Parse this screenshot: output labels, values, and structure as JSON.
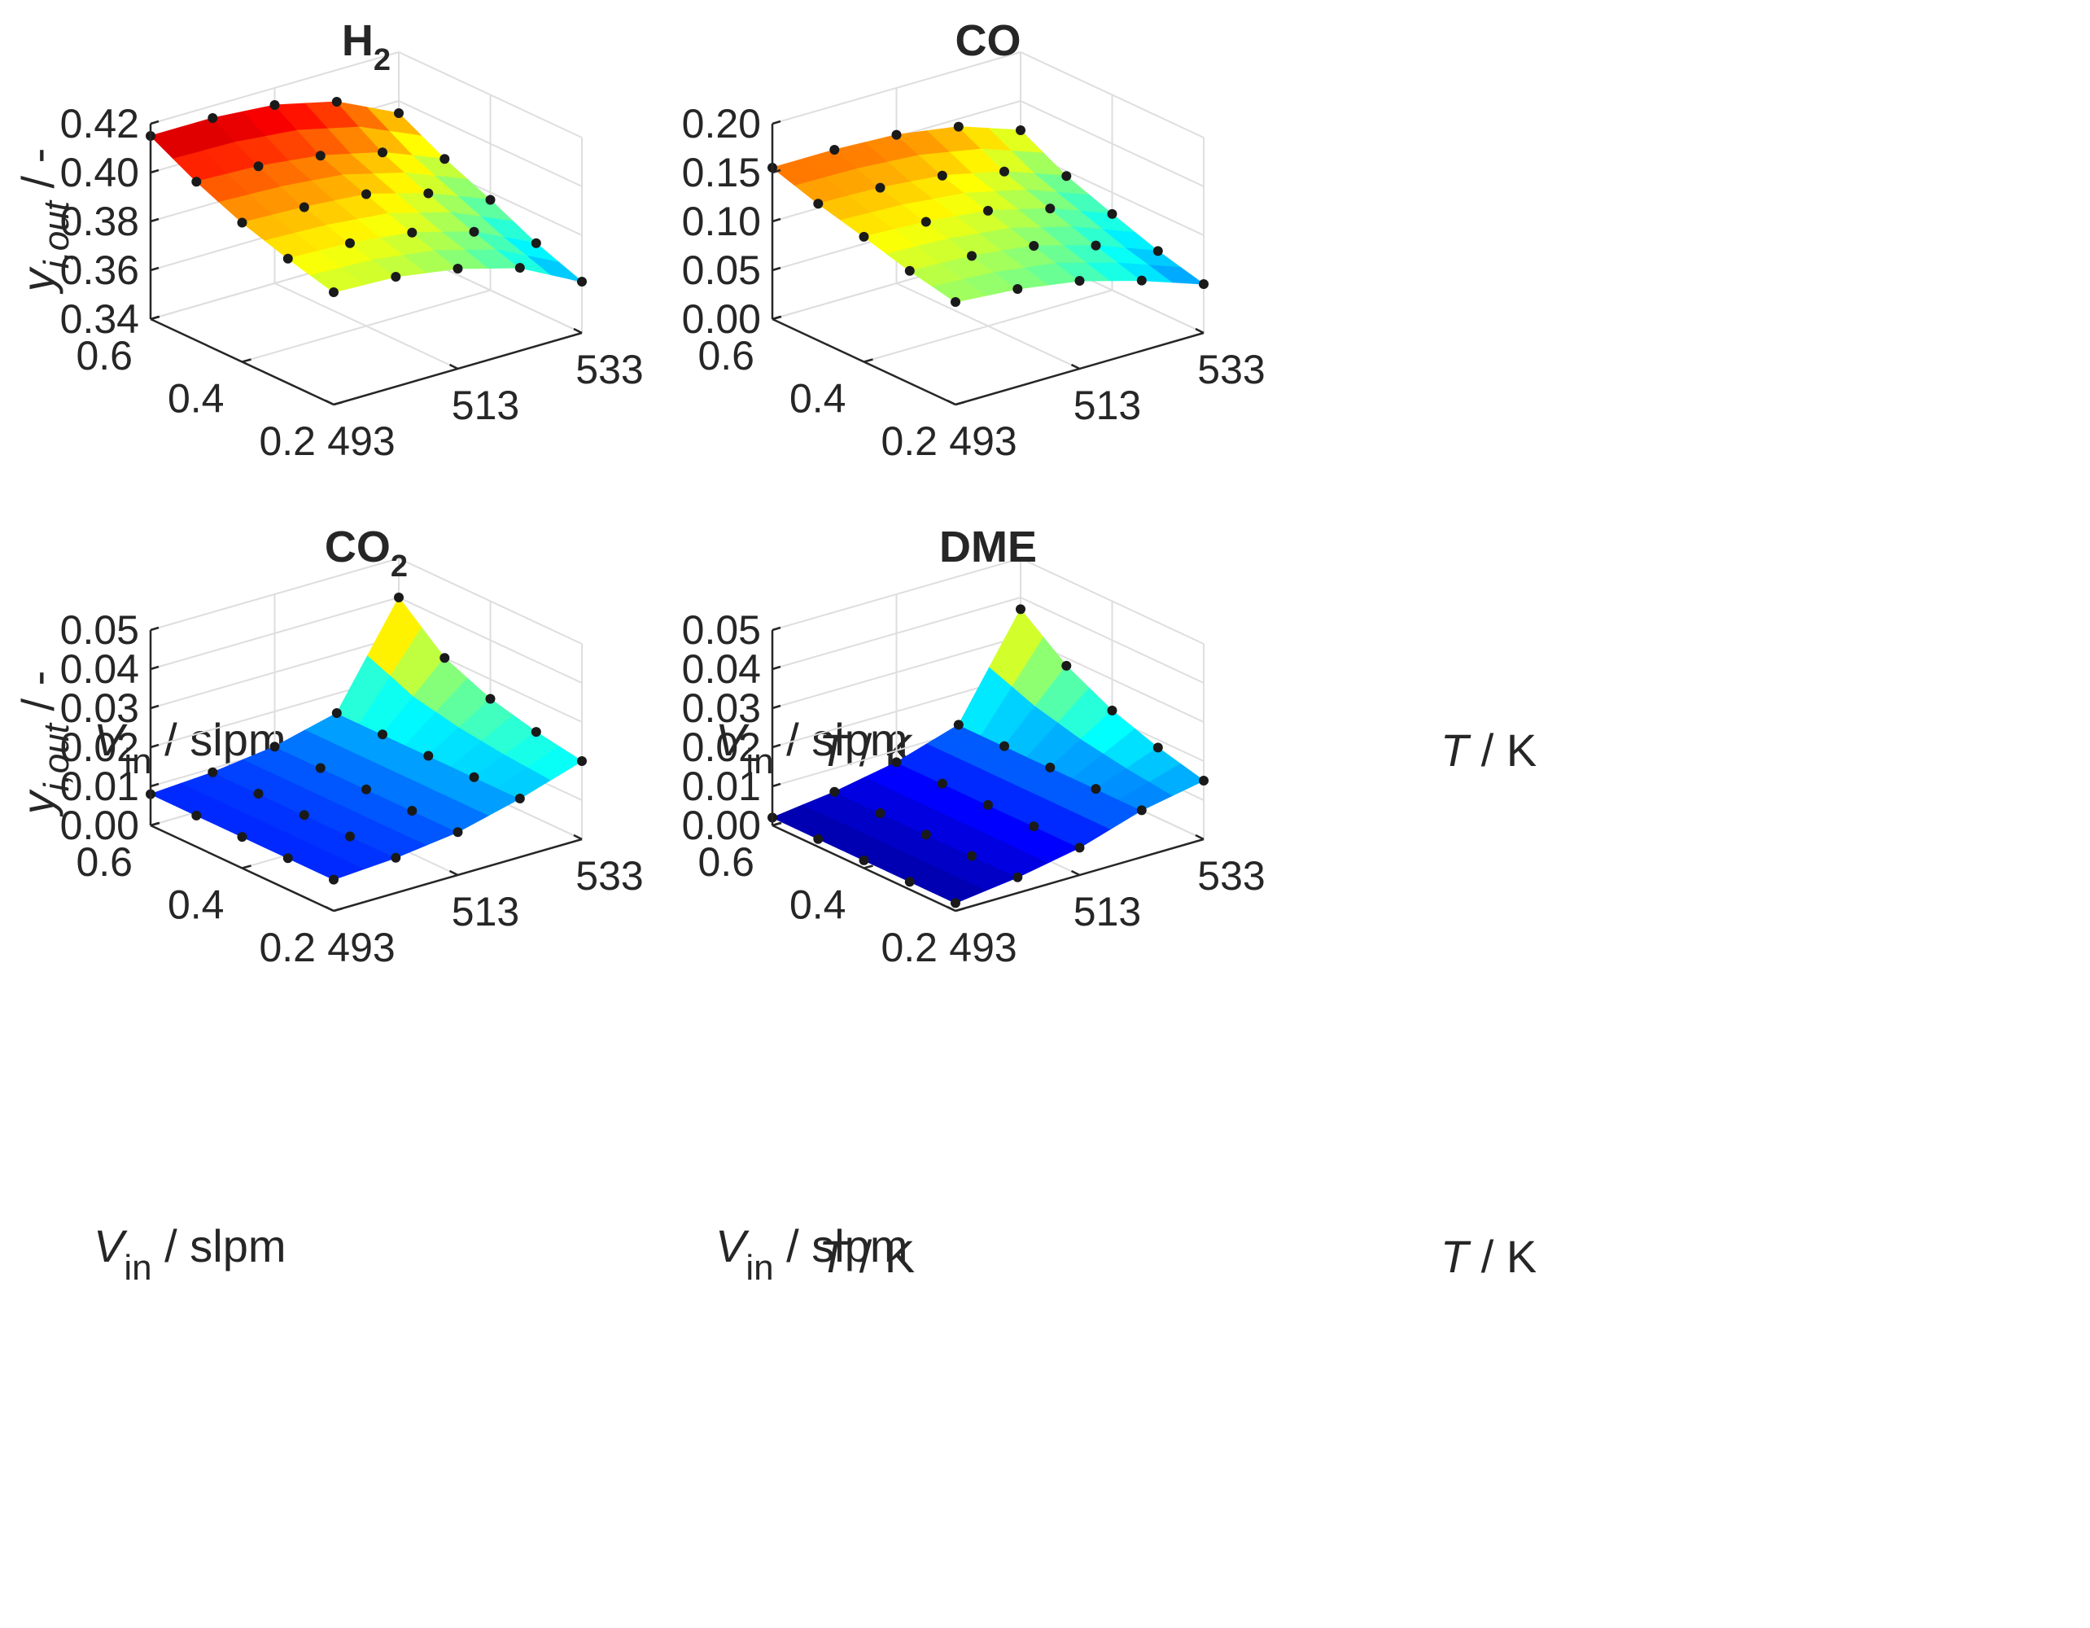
{
  "chart_data": [
    {
      "type": "surface",
      "title": "H",
      "title_sub": "2",
      "zlabel": "y",
      "zlabel_sub": "i,out",
      "zlabel_unit": " / -",
      "xlabel_italic": "V",
      "xlabel_sub": "in",
      "xlabel_unit": " / slpm",
      "ylabel_italic": "T",
      "ylabel_unit": " / K",
      "zlim": [
        0.34,
        0.42
      ],
      "zticks": [
        "0.34",
        "0.36",
        "0.38",
        "0.40",
        "0.42"
      ],
      "zticks_values": [
        0.34,
        0.36,
        0.38,
        0.4,
        0.42
      ],
      "flow_ticks": [
        "0.2",
        "0.4",
        "0.6"
      ],
      "flow_ticks_values": [
        0.2,
        0.4,
        0.6
      ],
      "temp_ticks": [
        "493",
        "513",
        "533"
      ],
      "temp_ticks_values": [
        493,
        513,
        533
      ],
      "grid": true,
      "flow_values": [
        0.6,
        0.5,
        0.4,
        0.3,
        0.2
      ],
      "temperature_values": [
        493,
        503,
        513,
        523,
        533
      ],
      "yi_out": [
        [
          0.415,
          0.415,
          0.413,
          0.407,
          0.395
        ],
        [
          0.405,
          0.404,
          0.401,
          0.395,
          0.385
        ],
        [
          0.397,
          0.396,
          0.394,
          0.387,
          0.377
        ],
        [
          0.391,
          0.39,
          0.387,
          0.38,
          0.368
        ],
        [
          0.386,
          0.385,
          0.381,
          0.374,
          0.361
        ]
      ]
    },
    {
      "type": "surface",
      "title": "CO",
      "title_sub": "",
      "zlabel": "",
      "zlabel_sub": "",
      "zlabel_unit": "",
      "xlabel_italic": "V",
      "xlabel_sub": "in",
      "xlabel_unit": " / slpm",
      "ylabel_italic": "T",
      "ylabel_unit": " / K",
      "zlim": [
        0.0,
        0.2
      ],
      "zticks": [
        "0.00",
        "0.05",
        "0.10",
        "0.15",
        "0.20"
      ],
      "zticks_values": [
        0.0,
        0.05,
        0.1,
        0.15,
        0.2
      ],
      "flow_ticks": [
        "0.2",
        "0.4",
        "0.6"
      ],
      "flow_ticks_values": [
        0.2,
        0.4,
        0.6
      ],
      "temp_ticks": [
        "493",
        "513",
        "533"
      ],
      "temp_ticks_values": [
        493,
        513,
        533
      ],
      "grid": true,
      "flow_values": [
        0.6,
        0.5,
        0.4,
        0.3,
        0.2
      ],
      "temperature_values": [
        493,
        503,
        513,
        523,
        533
      ],
      "yi_out": [
        [
          0.155,
          0.155,
          0.152,
          0.142,
          0.12
        ],
        [
          0.14,
          0.138,
          0.132,
          0.118,
          0.095
        ],
        [
          0.128,
          0.125,
          0.118,
          0.102,
          0.078
        ],
        [
          0.115,
          0.112,
          0.104,
          0.086,
          0.062
        ],
        [
          0.105,
          0.1,
          0.09,
          0.072,
          0.05
        ]
      ]
    },
    {
      "type": "surface",
      "title": "CO",
      "title_sub": "2",
      "zlabel": "y",
      "zlabel_sub": "i,out",
      "zlabel_unit": " / -",
      "xlabel_italic": "V",
      "xlabel_sub": "in",
      "xlabel_unit": " / slpm",
      "ylabel_italic": "T",
      "ylabel_unit": " / K",
      "zlim": [
        0.0,
        0.05
      ],
      "zticks": [
        "0.00",
        "0.01",
        "0.02",
        "0.03",
        "0.04",
        "0.05"
      ],
      "zticks_values": [
        0.0,
        0.01,
        0.02,
        0.03,
        0.04,
        0.05
      ],
      "flow_ticks": [
        "0.2",
        "0.4",
        "0.6"
      ],
      "flow_ticks_values": [
        0.2,
        0.4,
        0.6
      ],
      "temp_ticks": [
        "493",
        "513",
        "533"
      ],
      "temp_ticks_values": [
        493,
        513,
        533
      ],
      "grid": true,
      "flow_values": [
        0.6,
        0.5,
        0.4,
        0.3,
        0.2
      ],
      "temperature_values": [
        493,
        503,
        513,
        523,
        533
      ],
      "yi_out": [
        [
          0.008,
          0.009,
          0.011,
          0.015,
          0.04
        ],
        [
          0.008,
          0.009,
          0.011,
          0.015,
          0.03
        ],
        [
          0.008,
          0.009,
          0.011,
          0.015,
          0.025
        ],
        [
          0.008,
          0.009,
          0.011,
          0.015,
          0.022
        ],
        [
          0.008,
          0.009,
          0.011,
          0.015,
          0.02
        ]
      ]
    },
    {
      "type": "surface",
      "title": "DME",
      "title_sub": "",
      "zlabel": "",
      "zlabel_sub": "",
      "zlabel_unit": "",
      "xlabel_italic": "V",
      "xlabel_sub": "in",
      "xlabel_unit": " / slpm",
      "ylabel_italic": "T",
      "ylabel_unit": " / K",
      "zlim": [
        0.0,
        0.05
      ],
      "zticks": [
        "0.00",
        "0.01",
        "0.02",
        "0.03",
        "0.04",
        "0.05"
      ],
      "zticks_values": [
        0.0,
        0.01,
        0.02,
        0.03,
        0.04,
        0.05
      ],
      "flow_ticks": [
        "0.2",
        "0.4",
        "0.6"
      ],
      "flow_ticks_values": [
        0.2,
        0.4,
        0.6
      ],
      "temp_ticks": [
        "493",
        "513",
        "533"
      ],
      "temp_ticks_values": [
        493,
        513,
        533
      ],
      "grid": true,
      "flow_values": [
        0.6,
        0.5,
        0.4,
        0.3,
        0.2
      ],
      "temperature_values": [
        493,
        503,
        513,
        523,
        533
      ],
      "yi_out": [
        [
          0.002,
          0.004,
          0.007,
          0.012,
          0.037
        ],
        [
          0.002,
          0.004,
          0.007,
          0.012,
          0.028
        ],
        [
          0.002,
          0.004,
          0.007,
          0.012,
          0.022
        ],
        [
          0.002,
          0.004,
          0.007,
          0.012,
          0.018
        ],
        [
          0.002,
          0.004,
          0.007,
          0.012,
          0.015
        ]
      ]
    }
  ],
  "colormap": [
    "#00007f",
    "#0000ff",
    "#007fff",
    "#00ffff",
    "#7fff7f",
    "#ffff00",
    "#ff7f00",
    "#ff0000",
    "#7f0000"
  ]
}
